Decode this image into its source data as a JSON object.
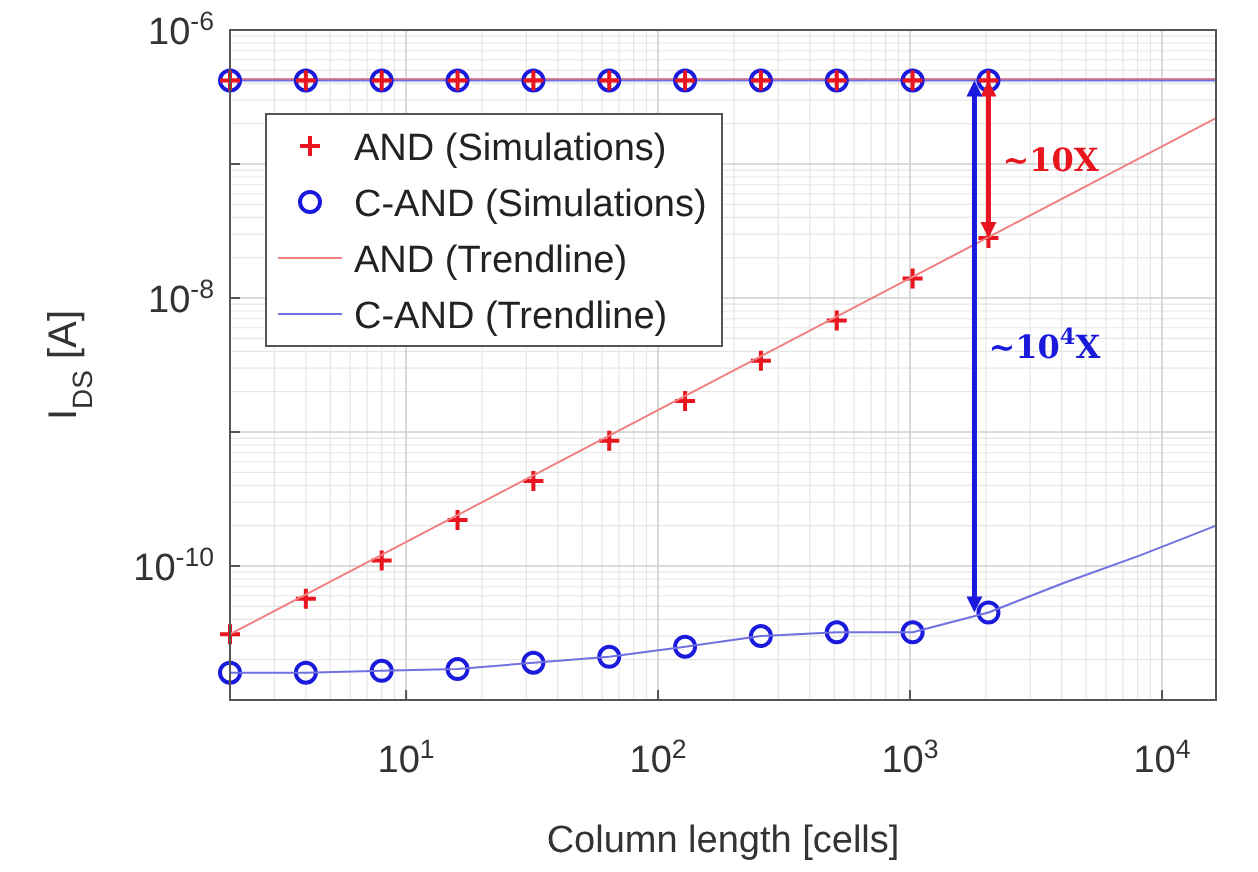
{
  "chart_data": {
    "type": "scatter",
    "xlabel": "Column length [cells]",
    "ylabel": "I$_{DS}$ [A]",
    "log": "xy",
    "grid": true,
    "legend": "top left",
    "xlim": [
      2,
      16384
    ],
    "ylim": [
      1e-11,
      1e-06
    ],
    "xticks": [
      {
        "value": 10,
        "label": "10$^{1}$"
      },
      {
        "value": 100,
        "label": "10$^{2}$"
      },
      {
        "value": 1000,
        "label": "10$^{3}$"
      },
      {
        "value": 10000,
        "label": "10$^{4}$"
      }
    ],
    "yticks": [
      {
        "value": 1e-11,
        "label": null
      },
      {
        "value": 1e-10,
        "label": "10$^{-10}$"
      },
      {
        "value": 1e-09,
        "label": null
      },
      {
        "value": 1e-08,
        "label": "10$^{-8}$"
      },
      {
        "value": 1e-07,
        "label": null
      },
      {
        "value": 1e-06,
        "label": "10$^{-6}$"
      }
    ],
    "x": [
      2,
      4,
      8,
      16,
      32,
      64,
      128,
      256,
      512,
      1024,
      2048
    ],
    "series": [
      {
        "name": "AND (Simulations)",
        "marker": "cross",
        "color": "#e8141e",
        "values": [
          3.1e-11,
          5.7e-11,
          1.1e-10,
          2.2e-10,
          4.3e-10,
          8.6e-10,
          1.7e-09,
          3.4e-09,
          6.8e-09,
          1.4e-08,
          2.8e-08
        ]
      },
      {
        "name": "C-AND (Simulations)",
        "marker": "circle",
        "color": "#1a1adc",
        "values": [
          1.6e-11,
          1.6e-11,
          1.65e-11,
          1.7e-11,
          1.9e-11,
          2.1e-11,
          2.5e-11,
          3e-11,
          3.2e-11,
          3.2e-11,
          4.5e-11
        ]
      },
      {
        "name": "AND (Trendline)",
        "type": "line",
        "marker": "none",
        "color": "#f08080",
        "x": [
          2,
          16384
        ],
        "values": [
          3.1e-11,
          2.2e-07
        ]
      },
      {
        "name": "C-AND (Trendline)",
        "type": "line",
        "marker": "none",
        "color": "#7070e0",
        "x": [
          2,
          4,
          8,
          16,
          32,
          64,
          128,
          256,
          512,
          1024,
          2048,
          4096,
          8192,
          16384
        ],
        "values": [
          1.6e-11,
          1.6e-11,
          1.65e-11,
          1.7e-11,
          1.9e-11,
          2.1e-11,
          2.5e-11,
          3e-11,
          3.2e-11,
          3.2e-11,
          4.5e-11,
          7.5e-11,
          1.2e-10,
          2e-10
        ]
      },
      {
        "type": "line",
        "marker": "none",
        "color": "#f08080",
        "x": [
          2,
          16384
        ],
        "values": [
          4.3e-07,
          4.3e-07
        ]
      },
      {
        "type": "line",
        "marker": "none",
        "color": "#7070e0",
        "x": [
          2,
          16384
        ],
        "values": [
          4.2e-07,
          4.2e-07
        ]
      },
      {
        "marker": "circle",
        "color": "#1a1adc",
        "values": [
          4.2e-07,
          4.2e-07,
          4.2e-07,
          4.2e-07,
          4.2e-07,
          4.2e-07,
          4.2e-07,
          4.2e-07,
          4.2e-07,
          4.2e-07,
          4.2e-07
        ]
      },
      {
        "marker": "cross",
        "color": "#e8141e",
        "values": [
          4.2e-07,
          4.2e-07,
          4.2e-07,
          4.2e-07,
          4.2e-07,
          4.2e-07,
          4.2e-07,
          4.2e-07,
          4.2e-07,
          4.2e-07,
          4.2e-07
        ]
      }
    ],
    "annotations": [
      "~10X",
      "~10$^{4}$X"
    ]
  }
}
